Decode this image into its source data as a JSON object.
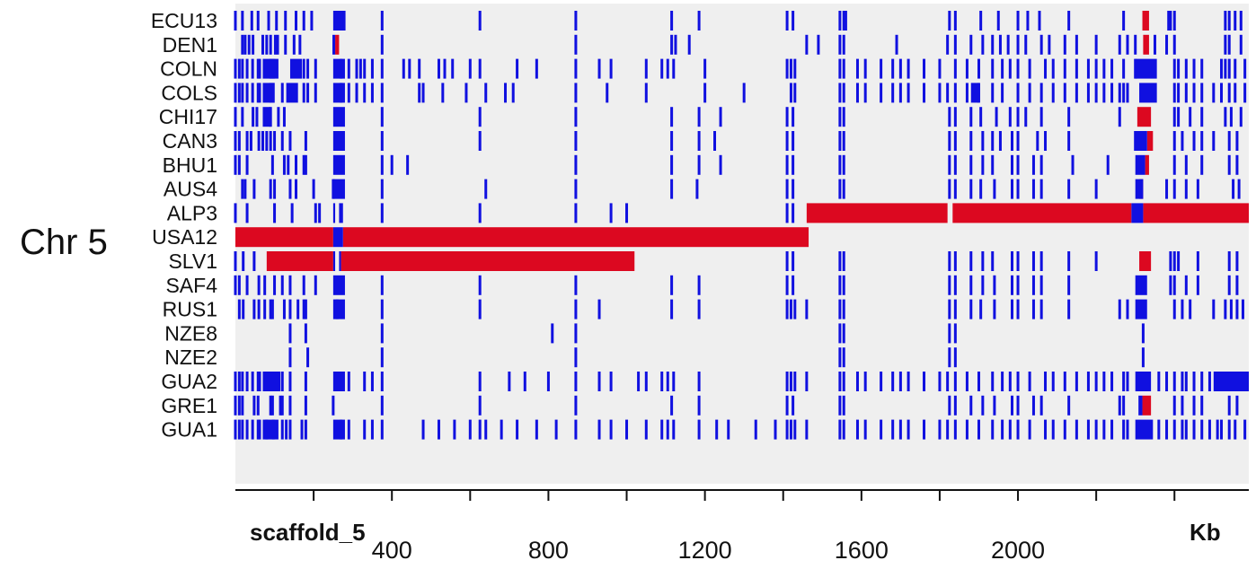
{
  "chart_data": {
    "type": "heatmap",
    "side_label": "Chr 5",
    "xlabel_left": "scaffold_5",
    "xunit": "Kb",
    "xlim": [
      0,
      2590
    ],
    "xticks": [
      400,
      800,
      1200,
      1600,
      2000
    ],
    "colors": {
      "snp": "#1010e0",
      "block": "#dc0820",
      "panel": "#efefef"
    },
    "rows": [
      {
        "name": "ECU13",
        "ticks": [
          0,
          18,
          42,
          58,
          85,
          105,
          128,
          155,
          175,
          195,
          255,
          262,
          270,
          278,
          375,
          625,
          870,
          1115,
          1185,
          1410,
          1425,
          1545,
          1555,
          1560,
          1825,
          1840,
          1905,
          1950,
          2000,
          2025,
          2055,
          2130,
          2270,
          2385,
          2390,
          2400,
          2530,
          2540,
          2555,
          2570
        ],
        "blocks": [
          [
            2318,
            2335
          ]
        ],
        "solid": [
          [
            250,
            280
          ]
        ]
      },
      {
        "name": "DEN1",
        "ticks": [
          18,
          25,
          35,
          45,
          70,
          80,
          90,
          102,
          108,
          128,
          150,
          165,
          375,
          870,
          1115,
          1125,
          1160,
          1460,
          1490,
          1545,
          1555,
          1690,
          1820,
          1840,
          1880,
          1910,
          1935,
          1955,
          1975,
          2000,
          2020,
          2060,
          2080,
          2120,
          2150,
          2200,
          2260,
          2280,
          2300,
          2350,
          2380,
          2400,
          2530,
          2540,
          2570
        ],
        "blocks": [
          [
            255,
            265
          ],
          [
            2320,
            2335
          ]
        ],
        "solid": [
          [
            248,
            255
          ]
        ]
      },
      {
        "name": "COLN",
        "ticks": [
          0,
          10,
          18,
          30,
          44,
          58,
          62,
          90,
          97,
          175,
          185,
          205,
          270,
          290,
          310,
          320,
          330,
          350,
          375,
          430,
          445,
          470,
          520,
          535,
          555,
          600,
          625,
          720,
          770,
          870,
          930,
          960,
          1050,
          1090,
          1105,
          1120,
          1200,
          1410,
          1420,
          1430,
          1545,
          1555,
          1590,
          1610,
          1650,
          1680,
          1700,
          1720,
          1760,
          1800,
          1840,
          1870,
          1900,
          1935,
          1960,
          1980,
          2000,
          2030,
          2070,
          2090,
          2120,
          2150,
          2180,
          2200,
          2220,
          2240,
          2270,
          2300,
          2400,
          2410,
          2430,
          2450,
          2470,
          2520,
          2530,
          2540,
          2555,
          2580
        ],
        "blocks": [],
        "solid": [
          [
            70,
            110
          ],
          [
            140,
            170
          ],
          [
            250,
            280
          ],
          [
            2300,
            2355
          ]
        ]
      },
      {
        "name": "COLS",
        "ticks": [
          0,
          10,
          18,
          30,
          44,
          58,
          62,
          90,
          97,
          120,
          175,
          185,
          205,
          270,
          290,
          310,
          330,
          350,
          375,
          470,
          480,
          530,
          590,
          640,
          690,
          710,
          870,
          950,
          1050,
          1200,
          1300,
          1420,
          1430,
          1545,
          1555,
          1590,
          1610,
          1650,
          1680,
          1700,
          1720,
          1760,
          1800,
          1820,
          1840,
          1870,
          1900,
          1935,
          1960,
          2000,
          2030,
          2060,
          2090,
          2120,
          2150,
          2180,
          2200,
          2220,
          2240,
          2260,
          2270,
          2280,
          2400,
          2410,
          2430,
          2450,
          2470,
          2500,
          2520,
          2540,
          2555,
          2580
        ],
        "blocks": [],
        "solid": [
          [
            70,
            100
          ],
          [
            130,
            160
          ],
          [
            250,
            280
          ],
          [
            1880,
            1900
          ],
          [
            2310,
            2355
          ]
        ]
      },
      {
        "name": "CHI17",
        "ticks": [
          0,
          18,
          45,
          55,
          90,
          110,
          125,
          375,
          625,
          870,
          1115,
          1185,
          1240,
          1410,
          1425,
          1545,
          1555,
          1825,
          1840,
          1880,
          1905,
          1945,
          1980,
          2000,
          2020,
          2060,
          2130,
          2260,
          2400,
          2410,
          2440,
          2470,
          2530,
          2545,
          2570
        ],
        "blocks": [
          [
            2305,
            2340
          ]
        ],
        "solid": [
          [
            70,
            90
          ],
          [
            250,
            280
          ]
        ]
      },
      {
        "name": "CAN3",
        "ticks": [
          0,
          10,
          30,
          40,
          60,
          70,
          80,
          90,
          100,
          120,
          140,
          180,
          375,
          625,
          870,
          1115,
          1185,
          1225,
          1410,
          1425,
          1545,
          1555,
          1825,
          1840,
          1880,
          1910,
          1935,
          1955,
          1985,
          2000,
          2050,
          2070,
          2130,
          2300,
          2400,
          2420,
          2450,
          2470,
          2500,
          2540,
          2560
        ],
        "blocks": [
          [
            2330,
            2345
          ]
        ],
        "solid": [
          [
            250,
            280
          ],
          [
            2300,
            2330
          ]
        ]
      },
      {
        "name": "BHU1",
        "ticks": [
          0,
          10,
          30,
          95,
          125,
          135,
          155,
          175,
          180,
          375,
          400,
          440,
          870,
          1115,
          1185,
          1240,
          1410,
          1425,
          1545,
          1555,
          1825,
          1840,
          1880,
          1910,
          1935,
          1985,
          2000,
          2040,
          2060,
          2140,
          2230,
          2400,
          2430,
          2470,
          2540,
          2560
        ],
        "blocks": [
          [
            2325,
            2335
          ]
        ],
        "solid": [
          [
            250,
            280
          ],
          [
            2300,
            2325
          ]
        ]
      },
      {
        "name": "AUS4",
        "ticks": [
          18,
          25,
          48,
          90,
          100,
          140,
          155,
          200,
          250,
          375,
          640,
          870,
          1115,
          1180,
          1410,
          1425,
          1545,
          1555,
          1825,
          1840,
          1880,
          1905,
          1940,
          1985,
          2000,
          2040,
          2060,
          2130,
          2200,
          2380,
          2400,
          2430,
          2460,
          2550,
          2565
        ],
        "blocks": [
          [
            2310,
            2320
          ]
        ],
        "solid": [
          [
            250,
            280
          ],
          [
            2300,
            2320
          ]
        ]
      },
      {
        "name": "ALP3",
        "ticks": [
          0,
          30,
          100,
          145,
          205,
          215,
          375,
          625,
          870,
          960,
          1000,
          1410,
          1425
        ],
        "blocks": [
          [
            1460,
            1820
          ],
          [
            1833,
            2290
          ],
          [
            2320,
            2590
          ]
        ],
        "solid": [
          [
            250,
            255
          ],
          [
            265,
            275
          ],
          [
            2290,
            2320
          ]
        ]
      },
      {
        "name": "USA12",
        "ticks": [],
        "blocks": [
          [
            0,
            250
          ],
          [
            275,
            1465
          ]
        ],
        "solid": [
          [
            250,
            275
          ]
        ]
      },
      {
        "name": "SLV1",
        "ticks": [
          0,
          20,
          48,
          1410,
          1425,
          1545,
          1555,
          1825,
          1840,
          1880,
          1910,
          1935,
          1985,
          2000,
          2040,
          2060,
          2130,
          2200,
          2390,
          2400,
          2410,
          2460,
          2540,
          2560
        ],
        "blocks": [
          [
            80,
            250
          ],
          [
            270,
            1020
          ],
          [
            2310,
            2340
          ]
        ],
        "solid": [
          [
            250,
            255
          ],
          [
            265,
            270
          ]
        ]
      },
      {
        "name": "SAF4",
        "ticks": [
          0,
          10,
          30,
          60,
          75,
          100,
          120,
          140,
          175,
          205,
          375,
          625,
          870,
          1115,
          1185,
          1410,
          1425,
          1545,
          1555,
          1825,
          1840,
          1880,
          1910,
          1940,
          1985,
          2000,
          2040,
          2060,
          2130,
          2390,
          2400,
          2430,
          2460,
          2540,
          2560
        ],
        "blocks": [],
        "solid": [
          [
            250,
            280
          ],
          [
            2300,
            2330
          ]
        ]
      },
      {
        "name": "RUS1",
        "ticks": [
          10,
          20,
          48,
          60,
          75,
          90,
          95,
          125,
          140,
          160,
          175,
          180,
          260,
          375,
          625,
          870,
          930,
          1115,
          1185,
          1410,
          1420,
          1430,
          1460,
          1545,
          1555,
          1825,
          1840,
          1880,
          1905,
          1940,
          1985,
          2000,
          2040,
          2060,
          2130,
          2260,
          2280,
          2400,
          2420,
          2440,
          2500,
          2530,
          2545,
          2560,
          2575
        ],
        "blocks": [],
        "solid": [
          [
            250,
            280
          ],
          [
            2300,
            2330
          ]
        ]
      },
      {
        "name": "NZE8",
        "ticks": [
          140,
          180,
          375,
          810,
          870,
          1545,
          1555,
          1825,
          1840,
          2320
        ],
        "blocks": [],
        "solid": []
      },
      {
        "name": "NZE2",
        "ticks": [
          140,
          185,
          375,
          870,
          1545,
          1555,
          1825,
          1840,
          2320
        ],
        "blocks": [],
        "solid": []
      },
      {
        "name": "GUA2",
        "ticks": [
          0,
          10,
          18,
          30,
          44,
          58,
          62,
          80,
          97,
          120,
          140,
          180,
          270,
          290,
          330,
          350,
          375,
          625,
          700,
          740,
          800,
          870,
          930,
          960,
          1030,
          1050,
          1090,
          1105,
          1120,
          1185,
          1410,
          1420,
          1430,
          1460,
          1545,
          1555,
          1590,
          1610,
          1650,
          1680,
          1700,
          1720,
          1760,
          1800,
          1820,
          1840,
          1870,
          1900,
          1935,
          1960,
          1980,
          2000,
          2030,
          2070,
          2090,
          2120,
          2150,
          2180,
          2200,
          2220,
          2240,
          2270,
          2280,
          2360,
          2380,
          2400,
          2420,
          2430,
          2450,
          2470,
          2490,
          2510,
          2520,
          2540,
          2555,
          2580
        ],
        "blocks": [],
        "solid": [
          [
            70,
            115
          ],
          [
            250,
            280
          ],
          [
            2300,
            2340
          ],
          [
            2500,
            2590
          ]
        ]
      },
      {
        "name": "GRE1",
        "ticks": [
          0,
          10,
          18,
          48,
          58,
          90,
          95,
          115,
          120,
          140,
          180,
          250,
          375,
          625,
          870,
          1115,
          1185,
          1410,
          1425,
          1545,
          1555,
          1825,
          1840,
          1880,
          1910,
          1940,
          1985,
          2000,
          2040,
          2060,
          2130,
          2260,
          2270,
          2400,
          2420,
          2450,
          2470,
          2540,
          2560
        ],
        "blocks": [
          [
            2318,
            2340
          ]
        ],
        "solid": [
          [
            2308,
            2318
          ]
        ]
      },
      {
        "name": "GUA1",
        "ticks": [
          0,
          10,
          18,
          30,
          44,
          58,
          62,
          80,
          97,
          120,
          130,
          140,
          170,
          180,
          270,
          290,
          330,
          350,
          375,
          480,
          520,
          560,
          600,
          625,
          640,
          680,
          720,
          770,
          820,
          870,
          930,
          960,
          1000,
          1050,
          1090,
          1105,
          1120,
          1185,
          1230,
          1260,
          1330,
          1380,
          1410,
          1420,
          1430,
          1460,
          1545,
          1555,
          1590,
          1610,
          1650,
          1680,
          1700,
          1720,
          1760,
          1800,
          1820,
          1840,
          1870,
          1900,
          1935,
          1960,
          1980,
          2000,
          2030,
          2070,
          2090,
          2120,
          2150,
          2180,
          2200,
          2220,
          2240,
          2270,
          2280,
          2360,
          2380,
          2400,
          2420,
          2430,
          2450,
          2470,
          2490,
          2510,
          2520,
          2540,
          2555,
          2580
        ],
        "blocks": [],
        "solid": [
          [
            70,
            110
          ],
          [
            250,
            280
          ],
          [
            2300,
            2345
          ]
        ]
      }
    ]
  }
}
